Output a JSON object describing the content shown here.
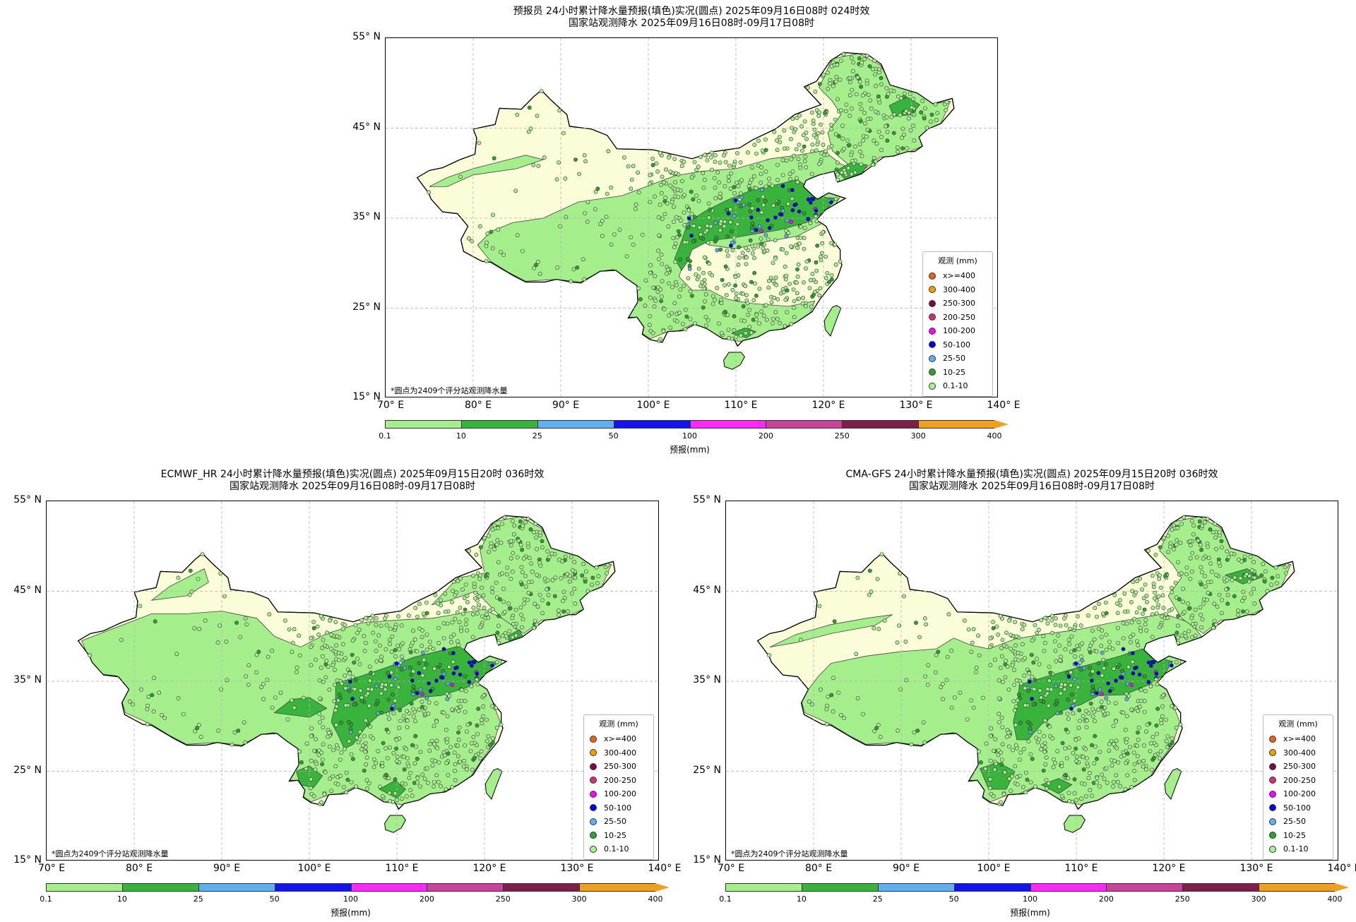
{
  "x_ticks": [
    "70° E",
    "80° E",
    "90° E",
    "100° E",
    "110° E",
    "120° E",
    "130° E",
    "140° E"
  ],
  "y_ticks": [
    "55° N",
    "45° N",
    "35° N",
    "25° N",
    "15° N"
  ],
  "note": "*圆点为2409个评分站观测降水量",
  "legend": {
    "title": "观测 (mm)",
    "items": [
      {
        "label": "x>=400",
        "color": "#e8641e"
      },
      {
        "label": "300-400",
        "color": "#f0a000"
      },
      {
        "label": "250-300",
        "color": "#7a0c3c"
      },
      {
        "label": "200-250",
        "color": "#d0307a"
      },
      {
        "label": "100-200",
        "color": "#ff00ff"
      },
      {
        "label": "50-100",
        "color": "#0000e0"
      },
      {
        "label": "25-50",
        "color": "#60b0f0"
      },
      {
        "label": "10-25",
        "color": "#30a030"
      },
      {
        "label": "0.1-10",
        "color": "#a8f090"
      }
    ]
  },
  "colorbar": {
    "label": "预报(mm)",
    "ticks": [
      "0.1",
      "10",
      "25",
      "50",
      "100",
      "200",
      "250",
      "300",
      "400"
    ],
    "colors": [
      "#a4ee8c",
      "#38b43c",
      "#60b0f0",
      "#1414f0",
      "#ff28ff",
      "#c8449a",
      "#7e1e4a",
      "#f0a020"
    ]
  },
  "colors": {
    "land_low": "#fbfcd8",
    "rain_light": "#a4ee8c",
    "rain_moderate": "#38b43c",
    "ocean": "#ffffff",
    "grid": "#b4b4b4"
  },
  "panels": [
    {
      "title1": "预报员 24小时累计降水量预报(填色)实况(圆点) 2025年09月16日08时 024时效",
      "title2": "国家站观测降水 2025年09月16日08时-09月17日08时"
    },
    {
      "title1": "ECMWF_HR 24小时累计降水量预报(填色)实况(圆点) 2025年09月15日20时 036时效",
      "title2": "国家站观测降水 2025年09月16日08时-09月17日08时"
    },
    {
      "title1": "CMA-GFS 24小时累计降水量预报(填色)实况(圆点) 2025年09月15日20时 036时效",
      "title2": "国家站观测降水 2025年09月16日08时-09月17日08时"
    }
  ]
}
